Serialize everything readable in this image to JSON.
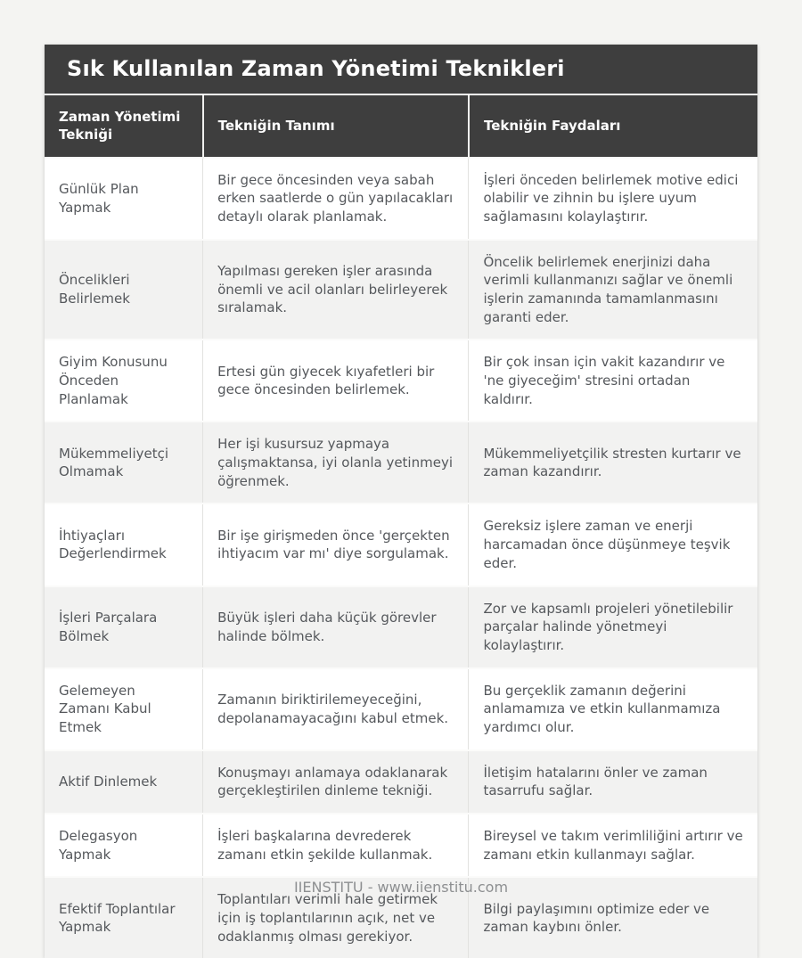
{
  "page": {
    "title": "Sık Kullanılan Zaman Yönetimi Teknikleri",
    "footer": "IIENSTITU - www.iienstitu.com"
  },
  "table": {
    "columns": [
      "Zaman Yönetimi Tekniği",
      "Tekniğin Tanımı",
      "Tekniğin Faydaları"
    ],
    "rows": [
      {
        "technique": "Günlük Plan Yapmak",
        "definition": "Bir gece öncesinden veya sabah erken saatlerde o gün yapılacakları detaylı olarak planlamak.",
        "benefit": "İşleri önceden belirlemek motive edici olabilir ve zihnin bu işlere uyum sağlamasını kolaylaştırır."
      },
      {
        "technique": "Öncelikleri Belirlemek",
        "definition": "Yapılması gereken işler arasında önemli ve acil olanları belirleyerek sıralamak.",
        "benefit": "Öncelik belirlemek enerjinizi daha verimli kullanmanızı sağlar ve önemli işlerin zamanında tamamlanmasını garanti eder."
      },
      {
        "technique": "Giyim Konusunu Önceden Planlamak",
        "definition": "Ertesi gün giyecek kıyafetleri bir gece öncesinden belirlemek.",
        "benefit": "Bir çok insan için vakit kazandırır ve 'ne giyeceğim' stresini ortadan kaldırır."
      },
      {
        "technique": "Mükemmeliyetçi Olmamak",
        "definition": "Her işi kusursuz yapmaya çalışmaktansa, iyi olanla yetinmeyi öğrenmek.",
        "benefit": "Mükemmeliyetçilik stresten kurtarır ve zaman kazandırır."
      },
      {
        "technique": "İhtiyaçları Değerlendirmek",
        "definition": "Bir işe girişmeden önce 'gerçekten ihtiyacım var mı' diye sorgulamak.",
        "benefit": "Gereksiz işlere zaman ve enerji harcamadan önce düşünmeye teşvik eder."
      },
      {
        "technique": "İşleri Parçalara Bölmek",
        "definition": "Büyük işleri daha küçük görevler halinde bölmek.",
        "benefit": "Zor ve kapsamlı projeleri yönetilebilir parçalar halinde yönetmeyi kolaylaştırır."
      },
      {
        "technique": "Gelemeyen Zamanı Kabul Etmek",
        "definition": "Zamanın biriktirilemeyeceğini, depolanamayacağını kabul etmek.",
        "benefit": "Bu gerçeklik zamanın değerini anlamamıza ve etkin kullanmamıza yardımcı olur."
      },
      {
        "technique": "Aktif Dinlemek",
        "definition": "Konuşmayı anlamaya odaklanarak gerçekleştirilen dinleme tekniği.",
        "benefit": "İletişim hatalarını önler ve zaman tasarrufu sağlar."
      },
      {
        "technique": "Delegasyon Yapmak",
        "definition": "İşleri başkalarına devrederek zamanı etkin şekilde kullanmak.",
        "benefit": "Bireysel ve takım verimliliğini artırır ve zamanı etkin kullanmayı sağlar."
      },
      {
        "technique": "Efektif Toplantılar Yapmak",
        "definition": "Toplantıları verimli hale getirmek için iş toplantılarının açık, net ve odaklanmış olması gerekiyor.",
        "benefit": "Bilgi paylaşımını optimize eder ve zaman kaybını önler."
      }
    ]
  },
  "colors": {
    "page_bg": "#f4f4f2",
    "card_bg": "#ffffff",
    "header_bg": "#3e3e3e",
    "header_text": "#ffffff",
    "row_alt_bg": "#f2f2f1",
    "cell_text": "#55585c",
    "divider": "#e2e2e0",
    "footer_text": "#8d8f91"
  }
}
